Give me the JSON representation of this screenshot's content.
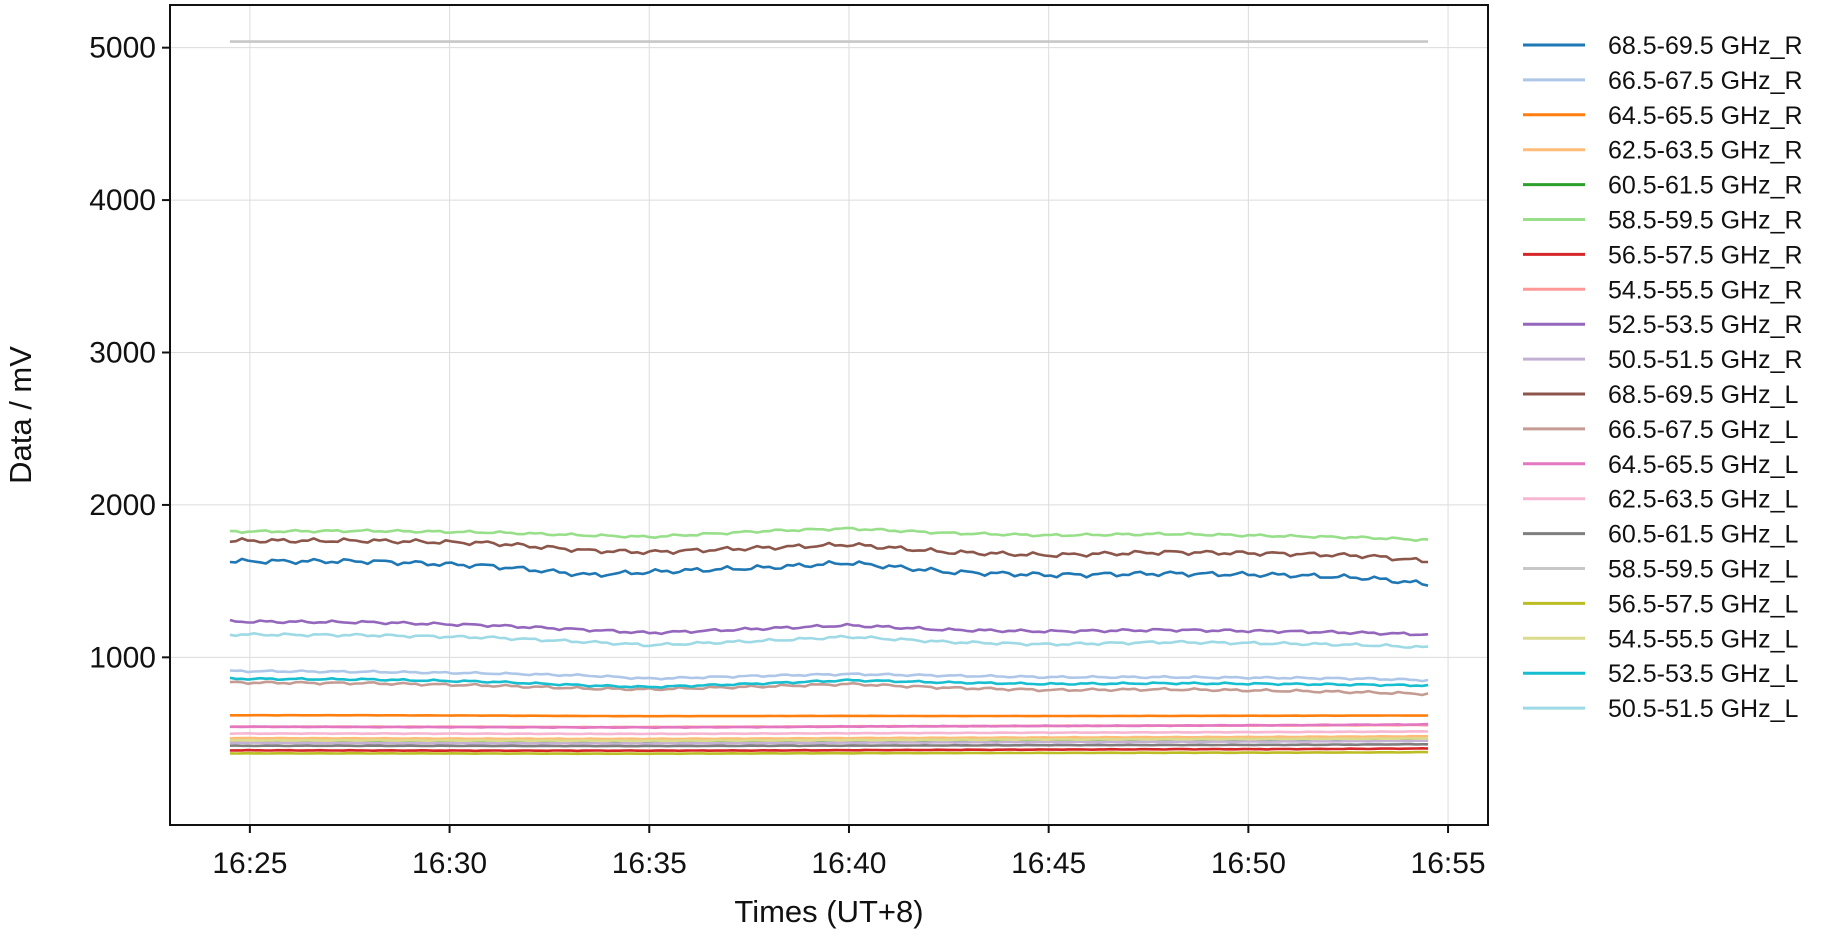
{
  "chart_data": {
    "type": "line",
    "title": "",
    "xlabel": "Times (UT+8)",
    "ylabel": "Data / mV",
    "x_range": [
      "16:23",
      "16:56"
    ],
    "ylim": [
      -100,
      5280
    ],
    "x_ticks": [
      "16:25",
      "16:30",
      "16:35",
      "16:40",
      "16:45",
      "16:50",
      "16:55"
    ],
    "y_ticks": [
      1000,
      2000,
      3000,
      4000,
      5000
    ],
    "grid": true,
    "legend_position": "outside-right",
    "x": [
      "16:24.5",
      "16:28",
      "16:31",
      "16:33.5",
      "16:35",
      "16:38",
      "16:40",
      "16:42.5",
      "16:45",
      "16:48",
      "16:51",
      "16:53",
      "16:54.5"
    ],
    "series": [
      {
        "name": "68.5-69.5 GHz_R",
        "color": "#1f77b4",
        "values": [
          1630,
          1630,
          1600,
          1540,
          1560,
          1590,
          1620,
          1560,
          1540,
          1550,
          1540,
          1520,
          1480
        ]
      },
      {
        "name": "66.5-67.5 GHz_R",
        "color": "#aec7e8",
        "values": [
          910,
          905,
          895,
          880,
          860,
          880,
          890,
          880,
          870,
          870,
          865,
          860,
          850
        ]
      },
      {
        "name": "64.5-65.5 GHz_R",
        "color": "#ff7f0e",
        "values": [
          620,
          620,
          618,
          615,
          614,
          615,
          616,
          615,
          615,
          616,
          617,
          618,
          618
        ]
      },
      {
        "name": "62.5-63.5 GHz_R",
        "color": "#ffbb78",
        "values": [
          470,
          468,
          466,
          465,
          465,
          467,
          470,
          472,
          474,
          476,
          478,
          480,
          482
        ]
      },
      {
        "name": "60.5-61.5 GHz_R",
        "color": "#2ca02c",
        "values": [
          450,
          448,
          446,
          445,
          445,
          447,
          450,
          452,
          454,
          456,
          458,
          460,
          462
        ]
      },
      {
        "name": "58.5-59.5 GHz_R",
        "color": "#98df8a",
        "values": [
          1825,
          1830,
          1820,
          1800,
          1790,
          1830,
          1845,
          1815,
          1800,
          1810,
          1795,
          1785,
          1770
        ]
      },
      {
        "name": "56.5-57.5 GHz_R",
        "color": "#d62728",
        "values": [
          390,
          389,
          388,
          388,
          388,
          389,
          391,
          393,
          395,
          397,
          398,
          400,
          402
        ]
      },
      {
        "name": "54.5-55.5 GHz_R",
        "color": "#ff9896",
        "values": [
          545,
          545,
          544,
          542,
          543,
          545,
          547,
          548,
          550,
          552,
          553,
          555,
          556
        ]
      },
      {
        "name": "52.5-53.5 GHz_R",
        "color": "#9467bd",
        "values": [
          1235,
          1230,
          1210,
          1180,
          1160,
          1190,
          1210,
          1180,
          1170,
          1180,
          1170,
          1160,
          1150
        ]
      },
      {
        "name": "50.5-51.5 GHz_R",
        "color": "#c5b0d5",
        "values": [
          440,
          438,
          437,
          436,
          436,
          438,
          440,
          442,
          444,
          446,
          448,
          450,
          452
        ]
      },
      {
        "name": "68.5-69.5 GHz_L",
        "color": "#8c564b",
        "values": [
          1765,
          1765,
          1750,
          1700,
          1690,
          1720,
          1740,
          1690,
          1670,
          1690,
          1680,
          1665,
          1630
        ]
      },
      {
        "name": "66.5-67.5 GHz_L",
        "color": "#c49c94",
        "values": [
          835,
          830,
          815,
          795,
          790,
          810,
          825,
          800,
          785,
          790,
          780,
          770,
          760
        ]
      },
      {
        "name": "64.5-65.5 GHz_L",
        "color": "#e377c2",
        "values": [
          545,
          543,
          542,
          540,
          540,
          543,
          546,
          548,
          550,
          552,
          555,
          558,
          560
        ]
      },
      {
        "name": "62.5-63.5 GHz_L",
        "color": "#f7b6d2",
        "values": [
          500,
          500,
          499,
          498,
          498,
          500,
          502,
          504,
          506,
          508,
          510,
          512,
          514
        ]
      },
      {
        "name": "60.5-61.5 GHz_L",
        "color": "#7f7f7f",
        "values": [
          420,
          420,
          419,
          418,
          418,
          420,
          421,
          422,
          424,
          425,
          426,
          428,
          430
        ]
      },
      {
        "name": "58.5-59.5 GHz_L",
        "color": "#c7c7c7",
        "values": [
          5040,
          5040,
          5040,
          5040,
          5040,
          5040,
          5040,
          5040,
          5040,
          5040,
          5040,
          5040,
          5040
        ]
      },
      {
        "name": "56.5-57.5 GHz_L",
        "color": "#bcbd22",
        "values": [
          370,
          370,
          369,
          368,
          368,
          370,
          371,
          372,
          373,
          374,
          375,
          376,
          378
        ]
      },
      {
        "name": "54.5-55.5 GHz_L",
        "color": "#dbdb8d",
        "values": [
          455,
          455,
          454,
          453,
          453,
          455,
          457,
          459,
          461,
          463,
          465,
          466,
          468
        ]
      },
      {
        "name": "52.5-53.5 GHz_L",
        "color": "#17becf",
        "values": [
          860,
          855,
          840,
          815,
          805,
          830,
          850,
          835,
          825,
          830,
          825,
          820,
          815
        ]
      },
      {
        "name": "50.5-51.5 GHz_L",
        "color": "#9edae5",
        "values": [
          1150,
          1145,
          1130,
          1100,
          1080,
          1110,
          1135,
          1100,
          1085,
          1100,
          1090,
          1080,
          1065
        ]
      }
    ]
  }
}
